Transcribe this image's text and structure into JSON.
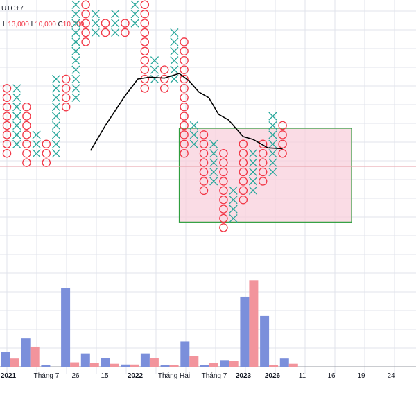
{
  "header": {
    "timezone": "UTC+7",
    "ohlc": [
      {
        "label": "H",
        "value": "13,000"
      },
      {
        "label": "L",
        "value": "10,000"
      },
      {
        "label": "C",
        "value": "10,000"
      }
    ]
  },
  "colors": {
    "x_mark": "#26a69a",
    "o_mark": "#f23645",
    "vol_up": "#7b8fdb",
    "vol_down": "#f2949c",
    "ma_line": "#000000",
    "box_fill": "#f8d0dc",
    "box_border": "#2e9e3e",
    "price_line": "#e69aa3",
    "grid": "#e0e3eb"
  },
  "chart_data": {
    "type": "point-and-figure",
    "title": "",
    "x_tick_labels": [
      {
        "label": "2021",
        "bold": true
      },
      {
        "label": "Tháng 7",
        "bold": false
      },
      {
        "label": "26",
        "bold": false
      },
      {
        "label": "15",
        "bold": false
      },
      {
        "label": "2022",
        "bold": true
      },
      {
        "label": "Tháng Hai",
        "bold": false
      },
      {
        "label": "Tháng 7",
        "bold": false
      },
      {
        "label": "2023",
        "bold": true
      },
      {
        "label": "2026",
        "bold": true
      },
      {
        "label": "11",
        "bold": false
      },
      {
        "label": "16",
        "bold": false
      },
      {
        "label": "19",
        "bold": false
      },
      {
        "label": "24",
        "bold": false
      }
    ],
    "columns": [
      {
        "type": "O",
        "from": 12,
        "to": 19
      },
      {
        "type": "X",
        "from": 13,
        "to": 19
      },
      {
        "type": "O",
        "from": 11,
        "to": 17
      },
      {
        "type": "X",
        "from": 12,
        "to": 14
      },
      {
        "type": "O",
        "from": 11,
        "to": 13
      },
      {
        "type": "X",
        "from": 12,
        "to": 20
      },
      {
        "type": "O",
        "from": 17,
        "to": 20
      },
      {
        "type": "X",
        "from": 18,
        "to": 29
      },
      {
        "type": "O",
        "from": 24,
        "to": 28
      },
      {
        "type": "X",
        "from": 25,
        "to": 27
      },
      {
        "type": "O",
        "from": 25,
        "to": 26
      },
      {
        "type": "X",
        "from": 25,
        "to": 27
      },
      {
        "type": "O",
        "from": 25,
        "to": 26
      },
      {
        "type": "X",
        "from": 26,
        "to": 30
      },
      {
        "type": "O",
        "from": 19,
        "to": 29
      },
      {
        "type": "X",
        "from": 20,
        "to": 22
      },
      {
        "type": "O",
        "from": 19,
        "to": 21
      },
      {
        "type": "X",
        "from": 20,
        "to": 25
      },
      {
        "type": "O",
        "from": 12,
        "to": 24
      },
      {
        "type": "X",
        "from": 13,
        "to": 15
      },
      {
        "type": "O",
        "from": 8,
        "to": 14
      },
      {
        "type": "X",
        "from": 9,
        "to": 13
      },
      {
        "type": "O",
        "from": 4,
        "to": 12
      },
      {
        "type": "X",
        "from": 5,
        "to": 8
      },
      {
        "type": "O",
        "from": 7,
        "to": 13
      },
      {
        "type": "X",
        "from": 8,
        "to": 12
      },
      {
        "type": "O",
        "from": 9,
        "to": 13
      },
      {
        "type": "X",
        "from": 10,
        "to": 16
      },
      {
        "type": "O",
        "from": 12,
        "to": 15
      }
    ],
    "volume": [
      {
        "up": 1.0,
        "down": 0.55
      },
      {
        "up": 1.9,
        "down": 1.35
      },
      {
        "up": 0.1,
        "down": 0.0
      },
      {
        "up": 5.3,
        "down": 0.3
      },
      {
        "up": 0.9,
        "down": 0.25
      },
      {
        "up": 0.6,
        "down": 0.2
      },
      {
        "up": 0.15,
        "down": 0.15
      },
      {
        "up": 0.9,
        "down": 0.6
      },
      {
        "up": 0.1,
        "down": 0.1
      },
      {
        "up": 1.7,
        "down": 0.7
      },
      {
        "up": 0.1,
        "down": 0.25
      },
      {
        "up": 0.45,
        "down": 0.4
      },
      {
        "up": 4.7,
        "down": 5.8
      },
      {
        "up": 3.4,
        "down": 0.1
      },
      {
        "up": 0.55,
        "down": 0.2
      }
    ],
    "moving_average": [
      {
        "col": 8.5,
        "v": 12.3
      },
      {
        "col": 10,
        "v": 15
      },
      {
        "col": 12,
        "v": 18.2
      },
      {
        "col": 13.3,
        "v": 20
      },
      {
        "col": 14.5,
        "v": 20.2
      },
      {
        "col": 16,
        "v": 20.1
      },
      {
        "col": 17.5,
        "v": 20.6
      },
      {
        "col": 18.5,
        "v": 19.8
      },
      {
        "col": 19.5,
        "v": 18.6
      },
      {
        "col": 20.5,
        "v": 18
      },
      {
        "col": 21.5,
        "v": 16.2
      },
      {
        "col": 22.5,
        "v": 15.6
      },
      {
        "col": 24,
        "v": 13.8
      },
      {
        "col": 25,
        "v": 13.5
      },
      {
        "col": 26.5,
        "v": 12.6
      },
      {
        "col": 28,
        "v": 12.5
      }
    ],
    "highlight_box": {
      "col_from": 17.5,
      "col_to": 35,
      "v_from": 4.6,
      "v_to": 14.7
    },
    "current_price_level": 10.6
  }
}
